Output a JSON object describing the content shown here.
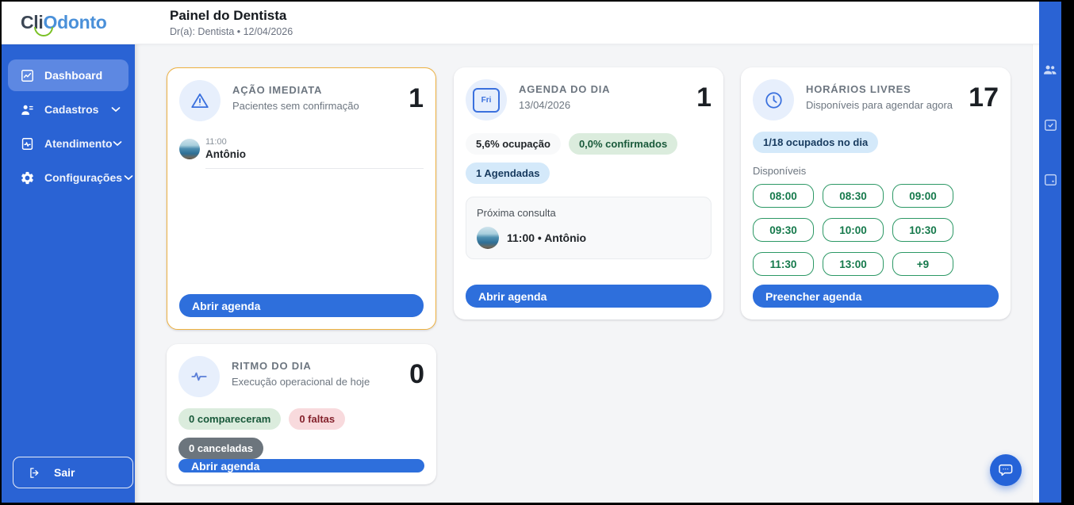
{
  "logo": {
    "part1": "Cli",
    "part2": "Odonto"
  },
  "header": {
    "title": "Painel do Dentista",
    "subtitle": "Dr(a): Dentista • 12/04/2026"
  },
  "sidebar": {
    "items": [
      {
        "label": "Dashboard",
        "active": true
      },
      {
        "label": "Cadastros"
      },
      {
        "label": "Atendimento"
      },
      {
        "label": "Configurações"
      }
    ],
    "logout_label": "Sair"
  },
  "cards": {
    "acao_imediata": {
      "title": "AÇÃO IMEDIATA",
      "subtitle": "Pacientes sem confirmação",
      "count": "1",
      "patient": {
        "time": "11:00",
        "name": "Antônio"
      },
      "button_label": "Abrir agenda"
    },
    "agenda_do_dia": {
      "title": "AGENDA DO DIA",
      "subtitle": "13/04/2026",
      "count": "1",
      "icon_label": "Fri",
      "badge_ocupacao": "5,6% ocupação",
      "badge_confirmados": "0,0% confirmados",
      "badge_agendadas": "1 Agendadas",
      "next_label": "Próxima consulta",
      "next_value": "11:00 • Antônio",
      "button_label": "Abrir agenda"
    },
    "horarios_livres": {
      "title": "HORÁRIOS LIVRES",
      "subtitle": "Disponíveis para agendar agora",
      "count": "17",
      "badge_ocupados": "1/18 ocupados no dia",
      "slots_label": "Disponíveis",
      "slots": [
        "08:00",
        "08:30",
        "09:00",
        "09:30",
        "10:00",
        "10:30",
        "11:30",
        "13:00",
        "+9"
      ],
      "button_label": "Preencher agenda"
    },
    "ritmo_do_dia": {
      "title": "RITMO DO DIA",
      "subtitle": "Execução operacional de hoje",
      "count": "0",
      "badge_compareceram": "0 compareceram",
      "badge_faltas": "0 faltas",
      "badge_canceladas": "0 canceladas",
      "button_label": "Abrir agenda"
    }
  },
  "colors": {
    "sidebar_blue": "#2a63d4",
    "active_item_blue": "#5d88e2",
    "button_blue": "#2e6fdc",
    "warning_border": "#eeb140",
    "slot_green": "#15794b",
    "logo_green": "#7ac125",
    "logo_blue": "#4a90d9"
  }
}
